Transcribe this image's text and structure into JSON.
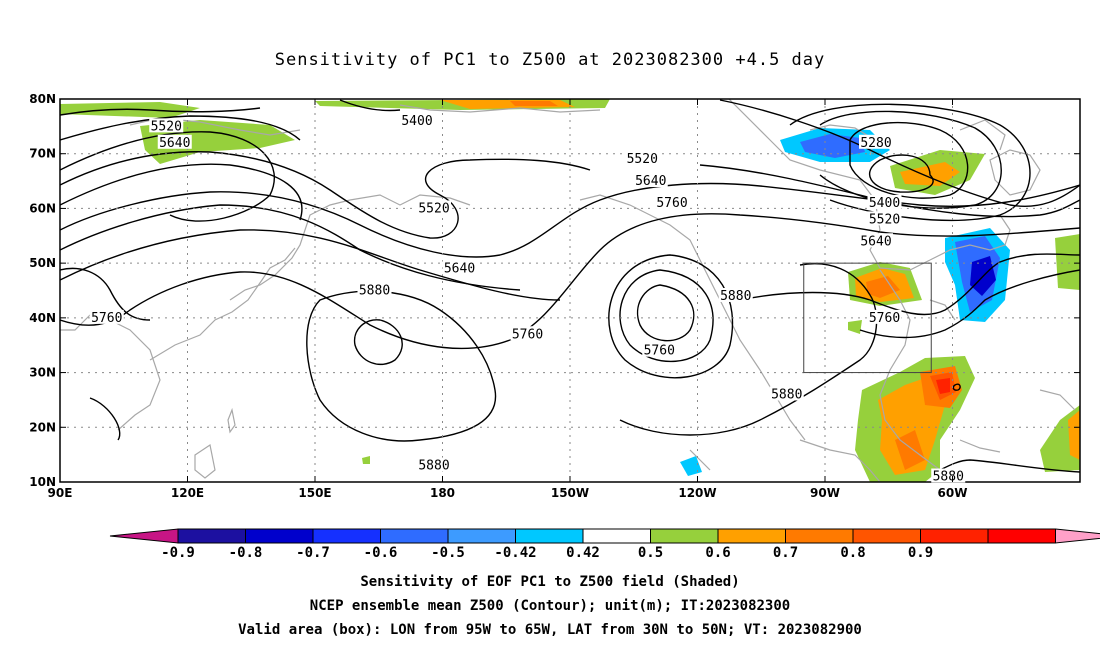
{
  "title": "Sensitivity of PC1 to Z500 at 2023082300 +4.5 day",
  "axes": {
    "lat_labels": [
      "80N",
      "70N",
      "60N",
      "50N",
      "40N",
      "30N",
      "20N",
      "10N"
    ],
    "lon_labels": [
      "90E",
      "120E",
      "150E",
      "180",
      "150W",
      "120W",
      "90W",
      "60W"
    ],
    "lon_range": [
      90,
      330
    ],
    "lat_range": [
      10,
      80
    ],
    "grid": true
  },
  "contour_labels": [
    {
      "text": "5520",
      "lon": 115,
      "lat": 75
    },
    {
      "text": "5640",
      "lon": 117,
      "lat": 72
    },
    {
      "text": "5400",
      "lon": 174,
      "lat": 76
    },
    {
      "text": "5520",
      "lon": 178,
      "lat": 60
    },
    {
      "text": "5640",
      "lon": 184,
      "lat": 49
    },
    {
      "text": "5880",
      "lon": 164,
      "lat": 45
    },
    {
      "text": "5760",
      "lon": 101,
      "lat": 40
    },
    {
      "text": "5760",
      "lon": 200,
      "lat": 37
    },
    {
      "text": "5880",
      "lon": 178,
      "lat": 13
    },
    {
      "text": "5520",
      "lon": 227,
      "lat": 69
    },
    {
      "text": "5640",
      "lon": 229,
      "lat": 65
    },
    {
      "text": "5760",
      "lon": 234,
      "lat": 61
    },
    {
      "text": "5760",
      "lon": 231,
      "lat": 34
    },
    {
      "text": "5880",
      "lon": 249,
      "lat": 44
    },
    {
      "text": "5880",
      "lon": 261,
      "lat": 26
    },
    {
      "text": "5280",
      "lon": 282,
      "lat": 72
    },
    {
      "text": "5400",
      "lon": 284,
      "lat": 61
    },
    {
      "text": "5520",
      "lon": 284,
      "lat": 58
    },
    {
      "text": "5640",
      "lon": 282,
      "lat": 54
    },
    {
      "text": "5760",
      "lon": 284,
      "lat": 40
    },
    {
      "text": "5880",
      "lon": 299,
      "lat": 11
    }
  ],
  "valid_box": {
    "lon": [
      265,
      295
    ],
    "lat": [
      30,
      50
    ]
  },
  "colorbar": {
    "labels": [
      "-0.9",
      "-0.8",
      "-0.7",
      "-0.6",
      "-0.5",
      "-0.42",
      "0.42",
      "0.5",
      "0.6",
      "0.7",
      "0.8",
      "0.9"
    ],
    "colors": [
      "#c71585",
      "#1c10a0",
      "#0000cc",
      "#1530ff",
      "#2f6cff",
      "#3d9bff",
      "#00c8ff",
      "#ffffff",
      "#96d03c",
      "#ffa000",
      "#ff7a00",
      "#ff5500",
      "#ff2200",
      "#ff0000",
      "#ffa0c8"
    ]
  },
  "footer": {
    "line1": "Sensitivity of EOF PC1 to Z500 field (Shaded)",
    "line2": "NCEP ensemble mean Z500 (Contour); unit(m); IT:2023082300",
    "line3": "Valid area (box): LON from 95W to 65W, LAT from 30N to 50N; VT: 2023082900"
  }
}
